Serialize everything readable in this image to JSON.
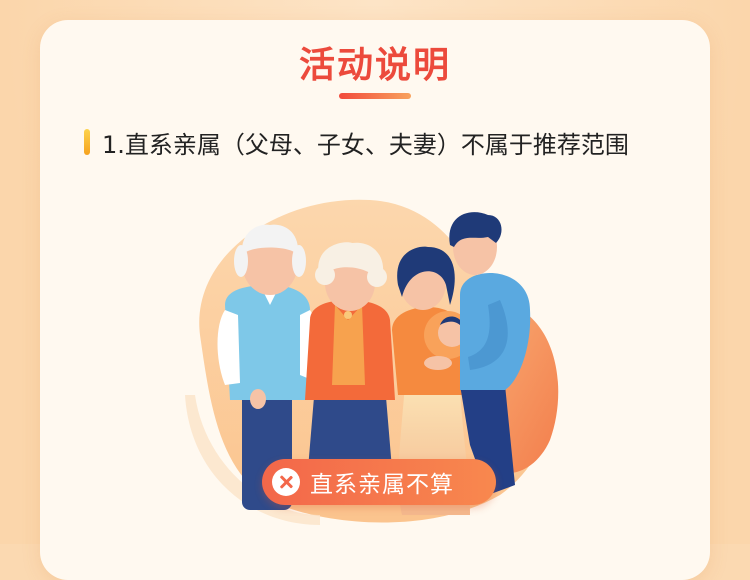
{
  "section": {
    "title": "活动说明",
    "rules": [
      {
        "text": "1.直系亲属（父母、子女、夫妻）不属于推荐范围"
      }
    ],
    "badge": {
      "icon": "close-circle-icon",
      "label": "直系亲属不算"
    }
  },
  "colors": {
    "title": "#ec4a3c",
    "badge": "#f3674a",
    "background": "#fbd9b1"
  }
}
